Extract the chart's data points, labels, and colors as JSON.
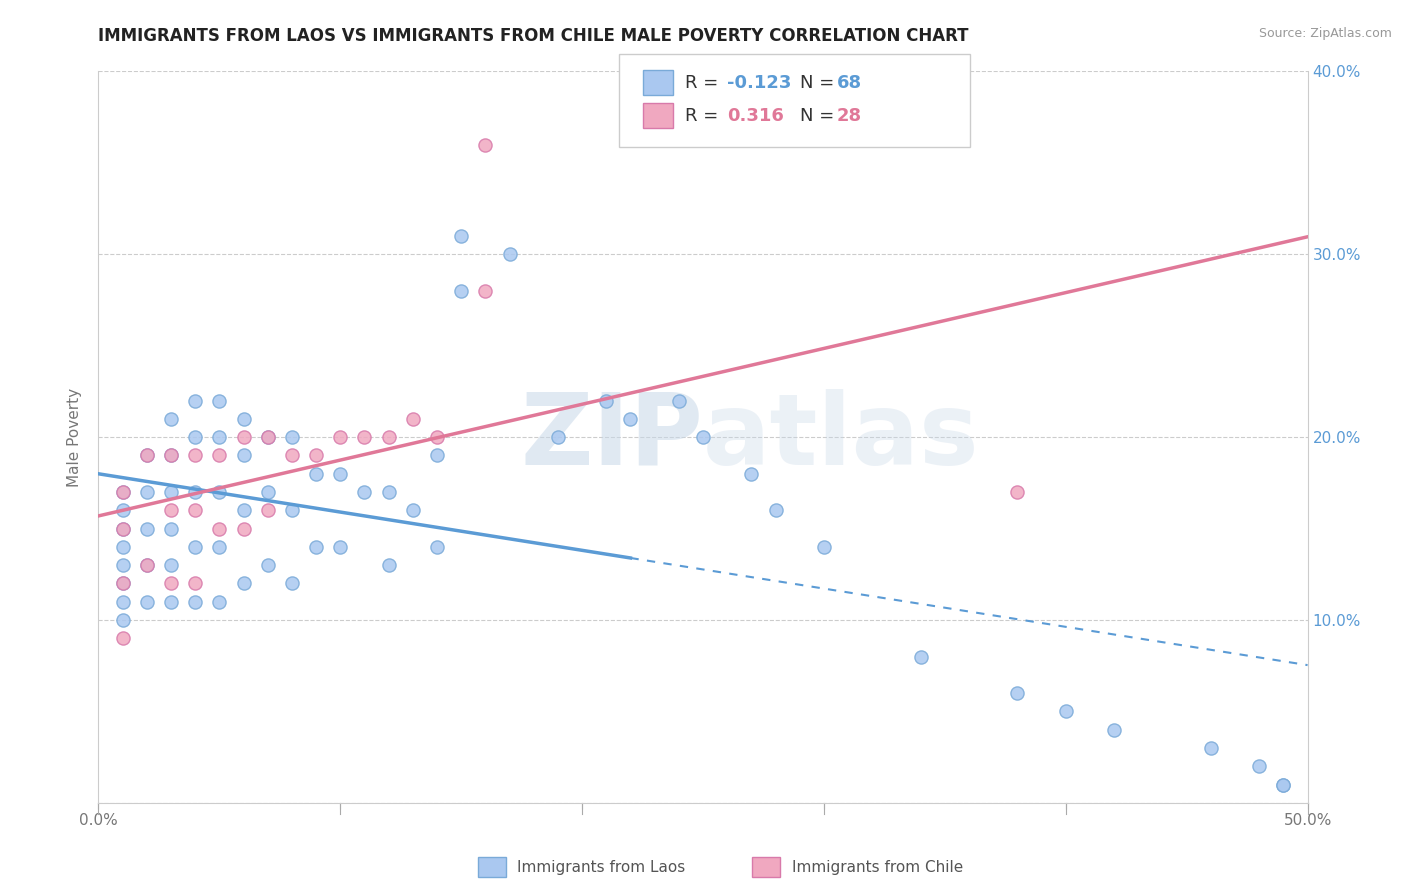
{
  "title": "IMMIGRANTS FROM LAOS VS IMMIGRANTS FROM CHILE MALE POVERTY CORRELATION CHART",
  "source": "Source: ZipAtlas.com",
  "ylabel": "Male Poverty",
  "xlim": [
    0,
    0.5
  ],
  "ylim": [
    0,
    0.4
  ],
  "xticks": [
    0.0,
    0.1,
    0.2,
    0.3,
    0.4,
    0.5
  ],
  "yticks": [
    0.0,
    0.1,
    0.2,
    0.3,
    0.4
  ],
  "xticklabels": [
    "0.0%",
    "",
    "",
    "",
    "",
    "50.0%"
  ],
  "yticklabels_left": [
    "",
    "",
    "",
    "",
    ""
  ],
  "yticklabels_right": [
    "",
    "10.0%",
    "20.0%",
    "30.0%",
    "40.0%"
  ],
  "laos_color": "#aac8f0",
  "laos_edge": "#7aaad8",
  "chile_color": "#f0a8c0",
  "chile_edge": "#d87aaa",
  "laos_line_color": "#5b9bd5",
  "chile_line_color": "#e07898",
  "laos_R": "-0.123",
  "laos_N": "68",
  "chile_R": "0.316",
  "chile_N": "28",
  "watermark": "ZIPatlas",
  "laos_x": [
    0.01,
    0.01,
    0.01,
    0.01,
    0.01,
    0.01,
    0.01,
    0.01,
    0.02,
    0.02,
    0.02,
    0.02,
    0.02,
    0.03,
    0.03,
    0.03,
    0.03,
    0.03,
    0.03,
    0.04,
    0.04,
    0.04,
    0.04,
    0.04,
    0.05,
    0.05,
    0.05,
    0.05,
    0.05,
    0.06,
    0.06,
    0.06,
    0.06,
    0.07,
    0.07,
    0.07,
    0.08,
    0.08,
    0.08,
    0.09,
    0.09,
    0.1,
    0.1,
    0.11,
    0.12,
    0.12,
    0.13,
    0.14,
    0.14,
    0.15,
    0.15,
    0.17,
    0.19,
    0.21,
    0.22,
    0.24,
    0.25,
    0.27,
    0.28,
    0.3,
    0.34,
    0.38,
    0.4,
    0.42,
    0.46,
    0.48,
    0.49,
    0.49
  ],
  "laos_y": [
    0.17,
    0.16,
    0.15,
    0.14,
    0.13,
    0.12,
    0.11,
    0.1,
    0.19,
    0.17,
    0.15,
    0.13,
    0.11,
    0.21,
    0.19,
    0.17,
    0.15,
    0.13,
    0.11,
    0.22,
    0.2,
    0.17,
    0.14,
    0.11,
    0.22,
    0.2,
    0.17,
    0.14,
    0.11,
    0.21,
    0.19,
    0.16,
    0.12,
    0.2,
    0.17,
    0.13,
    0.2,
    0.16,
    0.12,
    0.18,
    0.14,
    0.18,
    0.14,
    0.17,
    0.17,
    0.13,
    0.16,
    0.19,
    0.14,
    0.31,
    0.28,
    0.3,
    0.2,
    0.22,
    0.21,
    0.22,
    0.2,
    0.18,
    0.16,
    0.14,
    0.08,
    0.06,
    0.05,
    0.04,
    0.03,
    0.02,
    0.01,
    0.01
  ],
  "chile_x": [
    0.01,
    0.01,
    0.01,
    0.01,
    0.02,
    0.02,
    0.03,
    0.03,
    0.03,
    0.04,
    0.04,
    0.04,
    0.05,
    0.05,
    0.06,
    0.06,
    0.07,
    0.07,
    0.08,
    0.09,
    0.1,
    0.11,
    0.12,
    0.13,
    0.14,
    0.16,
    0.38,
    0.16
  ],
  "chile_y": [
    0.17,
    0.15,
    0.12,
    0.09,
    0.19,
    0.13,
    0.19,
    0.16,
    0.12,
    0.19,
    0.16,
    0.12,
    0.19,
    0.15,
    0.2,
    0.15,
    0.2,
    0.16,
    0.19,
    0.19,
    0.2,
    0.2,
    0.2,
    0.21,
    0.2,
    0.28,
    0.17,
    0.36
  ]
}
